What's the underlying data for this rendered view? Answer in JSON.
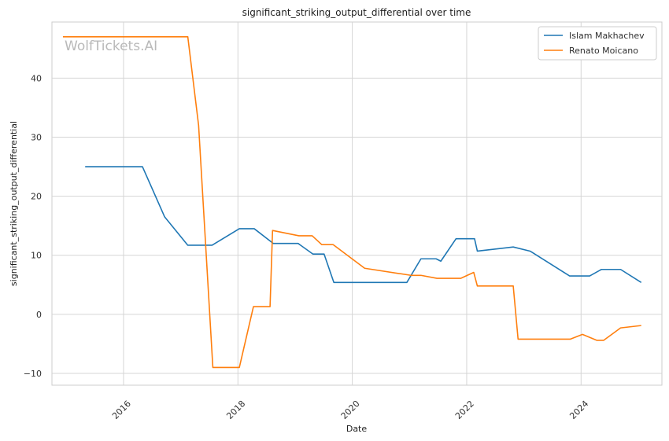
{
  "chart_data": {
    "type": "line",
    "title": "significant_striking_output_differential over time",
    "xlabel": "Date",
    "ylabel": "significant_striking_output_differential",
    "watermark": "WolfTickets.AI",
    "x_ticks": [
      "2016",
      "2018",
      "2020",
      "2022",
      "2024"
    ],
    "y_ticks": [
      "−10",
      "0",
      "10",
      "20",
      "30",
      "40"
    ],
    "xlim": [
      "2014-10-01",
      "2025-06-01"
    ],
    "ylim": [
      -12,
      49.5
    ],
    "grid": true,
    "legend_position": "top-right",
    "series": [
      {
        "name": "Islam Makhachev",
        "color": "#1f77b4",
        "points": [
          [
            "2015-05-01",
            25
          ],
          [
            "2016-05-01",
            25
          ],
          [
            "2016-09-20",
            16.5
          ],
          [
            "2017-02-15",
            11.7
          ],
          [
            "2017-07-20",
            11.7
          ],
          [
            "2018-01-10",
            14.5
          ],
          [
            "2018-04-15",
            14.5
          ],
          [
            "2018-08-15",
            12
          ],
          [
            "2019-01-20",
            12
          ],
          [
            "2019-04-25",
            10.2
          ],
          [
            "2019-07-05",
            10.2
          ],
          [
            "2019-09-05",
            5.4
          ],
          [
            "2020-12-15",
            5.4
          ],
          [
            "2021-03-15",
            9.4
          ],
          [
            "2021-06-20",
            9.4
          ],
          [
            "2021-07-20",
            9
          ],
          [
            "2021-10-25",
            12.8
          ],
          [
            "2022-02-20",
            12.8
          ],
          [
            "2022-03-10",
            10.7
          ],
          [
            "2022-10-25",
            11.4
          ],
          [
            "2023-02-10",
            10.7
          ],
          [
            "2023-10-20",
            6.5
          ],
          [
            "2024-02-25",
            6.5
          ],
          [
            "2024-05-10",
            7.6
          ],
          [
            "2024-09-10",
            7.6
          ],
          [
            "2025-01-20",
            5.4
          ]
        ]
      },
      {
        "name": "Renato Moicano",
        "color": "#ff7f0e",
        "points": [
          [
            "2014-12-10",
            47
          ],
          [
            "2017-02-15",
            47
          ],
          [
            "2017-04-25",
            32
          ],
          [
            "2017-07-25",
            -9
          ],
          [
            "2018-01-10",
            -9
          ],
          [
            "2018-04-10",
            1.3
          ],
          [
            "2018-07-25",
            1.3
          ],
          [
            "2018-08-10",
            14.2
          ],
          [
            "2019-01-25",
            13.3
          ],
          [
            "2019-04-20",
            13.3
          ],
          [
            "2019-06-20",
            11.8
          ],
          [
            "2019-09-01",
            11.8
          ],
          [
            "2020-03-20",
            7.8
          ],
          [
            "2021-01-10",
            6.6
          ],
          [
            "2021-03-15",
            6.6
          ],
          [
            "2021-06-25",
            6.1
          ],
          [
            "2021-11-25",
            6.1
          ],
          [
            "2022-02-15",
            7.1
          ],
          [
            "2022-03-10",
            4.8
          ],
          [
            "2022-10-25",
            4.8
          ],
          [
            "2022-11-25",
            -4.2
          ],
          [
            "2023-10-25",
            -4.2
          ],
          [
            "2024-01-10",
            -3.4
          ],
          [
            "2024-04-10",
            -4.4
          ],
          [
            "2024-05-25",
            -4.4
          ],
          [
            "2024-09-10",
            -2.3
          ],
          [
            "2025-01-20",
            -1.9
          ]
        ]
      }
    ]
  }
}
